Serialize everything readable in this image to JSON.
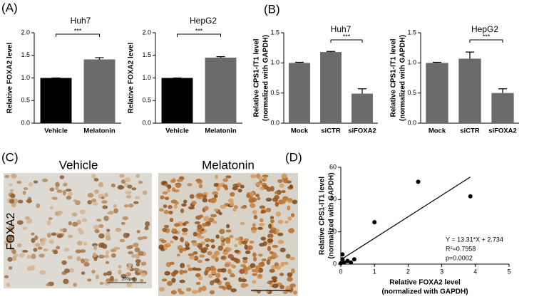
{
  "panel_labels": [
    "(A)",
    "(B)",
    "(C)",
    "(D)"
  ],
  "images": {
    "labels": [
      "Vehicle",
      "Melatonin"
    ],
    "stain": "FOXA2",
    "scale_bar": "200μm"
  },
  "chart_data": [
    {
      "type": "bar",
      "title": "Huh7",
      "ylabel": "Relative FOXA2 level",
      "categories": [
        "Vehicle",
        "Melatonin"
      ],
      "values": [
        1.0,
        1.41
      ],
      "errors": [
        0.0,
        0.04
      ],
      "colors": [
        "#000000",
        "#6b6b6b"
      ],
      "ylim": [
        0,
        2
      ],
      "yticks": [
        {
          "value": 0,
          "label": "0.0"
        },
        0.5,
        {
          "value": 1,
          "label": "1.0"
        },
        1.5,
        {
          "value": 2,
          "label": "2.0"
        }
      ],
      "significance": {
        "label": "***",
        "between": [
          0,
          1
        ]
      }
    },
    {
      "type": "bar",
      "title": "HepG2",
      "ylabel": "Relative FOXA2 level",
      "categories": [
        "Vehicle",
        "Melatonin"
      ],
      "values": [
        1.0,
        1.45
      ],
      "errors": [
        0.0,
        0.02
      ],
      "colors": [
        "#000000",
        "#6b6b6b"
      ],
      "ylim": [
        0,
        2
      ],
      "yticks": [
        {
          "value": 0,
          "label": "0.0"
        },
        0.5,
        {
          "value": 1,
          "label": "1.0"
        },
        1.5,
        {
          "value": 2,
          "label": "2.0"
        }
      ],
      "significance": {
        "label": "***",
        "between": [
          0,
          1
        ]
      }
    },
    {
      "type": "bar",
      "title": "Huh7",
      "ylabel": [
        "Relative CPS1-IT1  level",
        "(normalized with GAPDH)"
      ],
      "categories": [
        "Mock",
        "siCTR",
        "siFOXA2"
      ],
      "values": [
        1.0,
        1.18,
        0.49
      ],
      "errors": [
        0.01,
        0.01,
        0.08
      ],
      "colors": [
        "#6b6b6b",
        "#6b6b6b",
        "#6b6b6b"
      ],
      "ylim": [
        0,
        1.5
      ],
      "yticks": [
        {
          "value": 0,
          "label": "0.0"
        },
        0.5,
        {
          "value": 1,
          "label": "1.0"
        },
        1.5
      ],
      "significance": {
        "label": "***",
        "between": [
          1,
          2
        ]
      }
    },
    {
      "type": "bar",
      "title": "HepG2",
      "ylabel": [
        "Relative CPS1-IT1  level",
        "(normalized with GAPDH)"
      ],
      "categories": [
        "Mock",
        "siCTR",
        "siFOXA2"
      ],
      "values": [
        1.0,
        1.07,
        0.5
      ],
      "errors": [
        0.01,
        0.11,
        0.07
      ],
      "colors": [
        "#6b6b6b",
        "#6b6b6b",
        "#6b6b6b"
      ],
      "ylim": [
        0,
        1.5
      ],
      "yticks": [
        {
          "value": 0,
          "label": "0.0"
        },
        0.5,
        {
          "value": 1,
          "label": "1.0"
        },
        1.5
      ],
      "significance": {
        "label": "***",
        "between": [
          1,
          2
        ]
      }
    },
    {
      "type": "scatter",
      "xlabel": [
        "Relative FOXA2 level",
        "(normalized with GAPDH)"
      ],
      "ylabel": [
        "Relative CPS1-IT1  level",
        "(normalized with GAPDH)"
      ],
      "x": [
        0.0,
        0.05,
        0.05,
        0.1,
        0.2,
        0.3,
        0.4,
        1.0,
        2.3,
        3.85
      ],
      "y": [
        0.5,
        6,
        3,
        1,
        2,
        1,
        3,
        26,
        51,
        42
      ],
      "color": "#000000",
      "xlim": [
        0,
        5
      ],
      "xticks": [
        0,
        1,
        2,
        3,
        4,
        5
      ],
      "ylim": [
        0,
        60
      ],
      "yticks": [
        0,
        20,
        40,
        60
      ],
      "fit": {
        "slope": 13.31,
        "intercept": 2.734
      },
      "annotations": [
        "Y = 13.31*X + 2.734",
        "R²=0.7958",
        "p=0.0002"
      ]
    }
  ]
}
